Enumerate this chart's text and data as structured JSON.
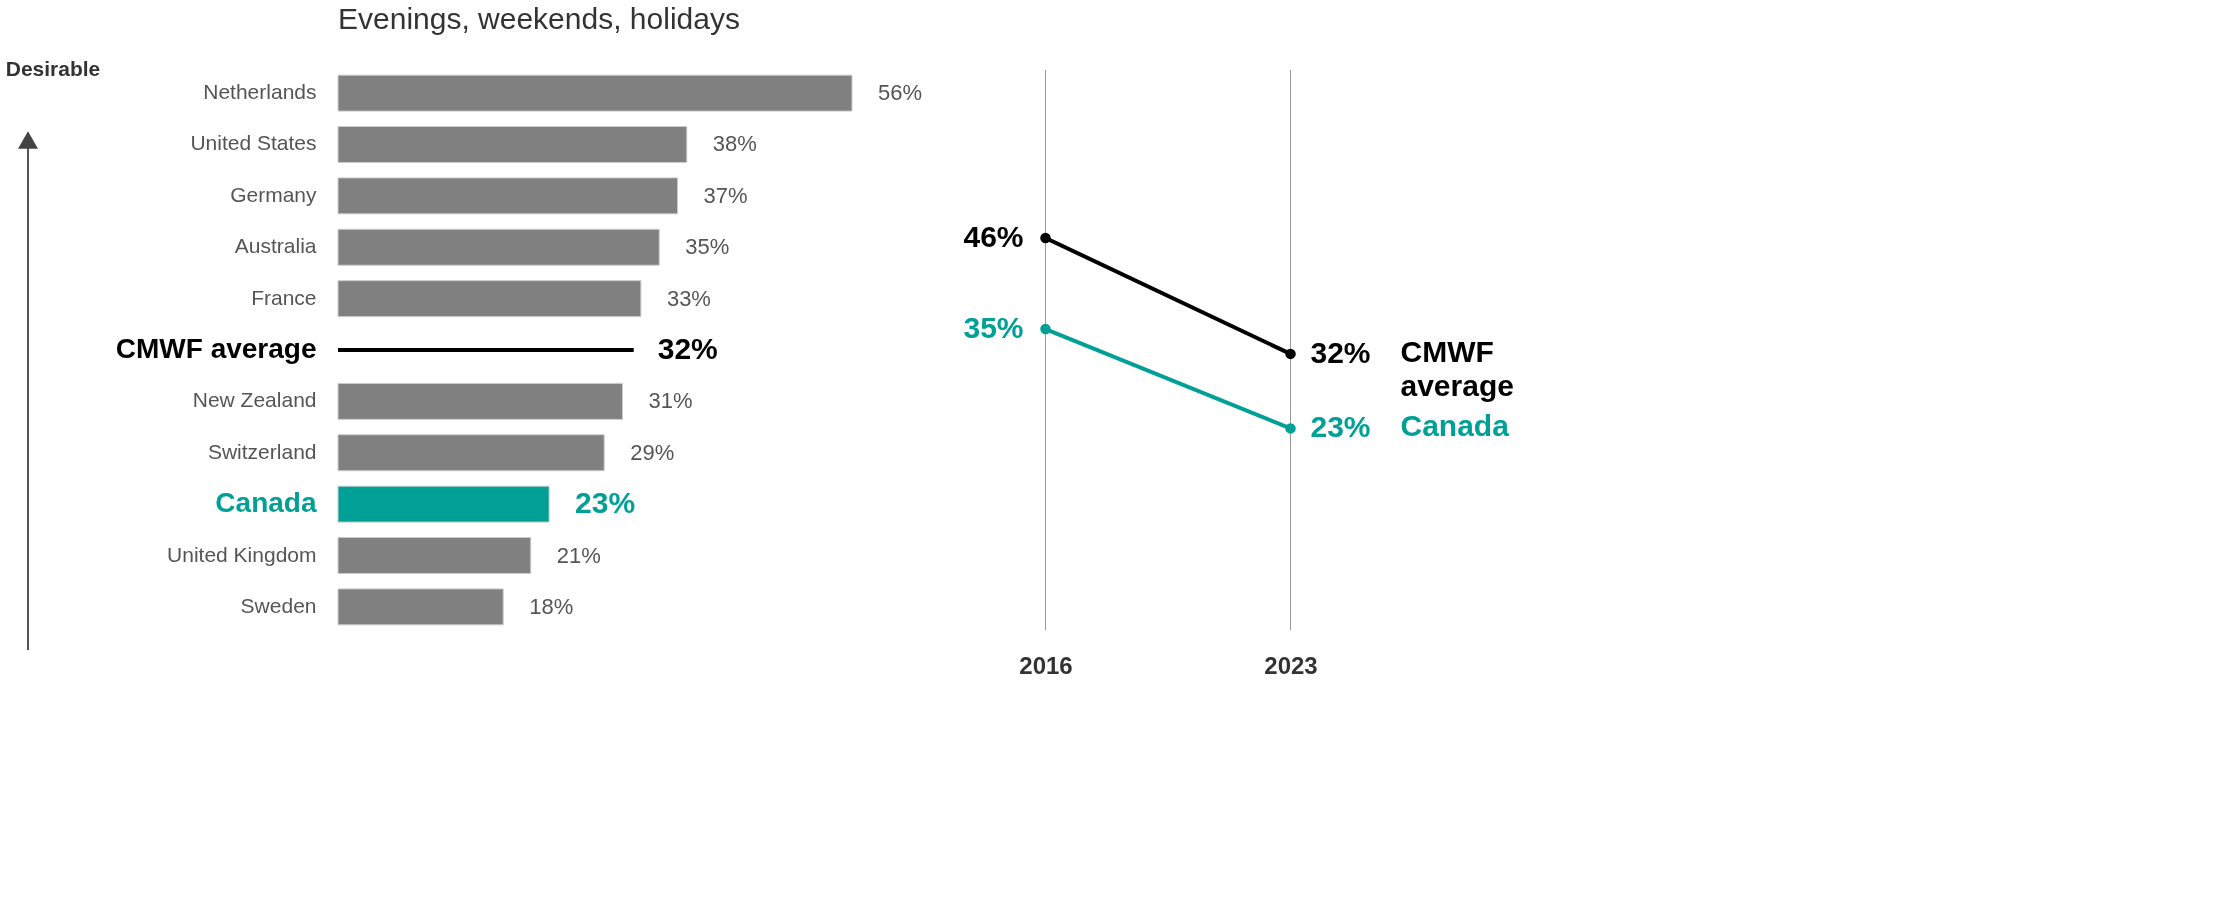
{
  "chart_data": [
    {
      "type": "bar",
      "orientation": "horizontal",
      "title": "Evenings, weekends, holidays",
      "annotations": [
        "Desirable"
      ],
      "categories": [
        "Netherlands",
        "United States",
        "Germany",
        "Australia",
        "France",
        "CMWF average",
        "New Zealand",
        "Switzerland",
        "Canada",
        "United Kingdom",
        "Sweden"
      ],
      "series": [
        {
          "type": "bar",
          "color": "#808080",
          "colors": [
            "#808080",
            "#808080",
            "#808080",
            "#808080",
            "#808080",
            null,
            "#808080",
            "#808080",
            "#00a096",
            "#808080",
            "#808080"
          ],
          "values": [
            56,
            38,
            37,
            35,
            33,
            null,
            31,
            29,
            23,
            21,
            18
          ],
          "value_labels": [
            "56%",
            "38%",
            "37%",
            "35%",
            "33%",
            null,
            "31%",
            "29%",
            "23%",
            "21%",
            "18%"
          ]
        },
        {
          "type": "line",
          "marker": "square",
          "color": "#000000",
          "values": [
            null,
            null,
            null,
            null,
            null,
            32,
            null,
            null,
            null,
            null,
            null
          ],
          "value_labels": [
            null,
            null,
            null,
            null,
            null,
            "32%",
            null,
            null,
            null,
            null,
            null
          ]
        }
      ]
    },
    {
      "type": "line",
      "categories": [
        "2016",
        "2023"
      ],
      "grid": "x",
      "tick_labels": "x",
      "marker": "circle",
      "series": [
        {
          "name": "CMWF average",
          "color": "#000000",
          "values": [
            46,
            32
          ],
          "value_labels": [
            "46%",
            "32%"
          ]
        },
        {
          "name": "Canada",
          "color": "#00a096",
          "values": [
            35,
            23
          ],
          "value_labels": [
            "35%",
            "23%"
          ]
        }
      ]
    }
  ]
}
